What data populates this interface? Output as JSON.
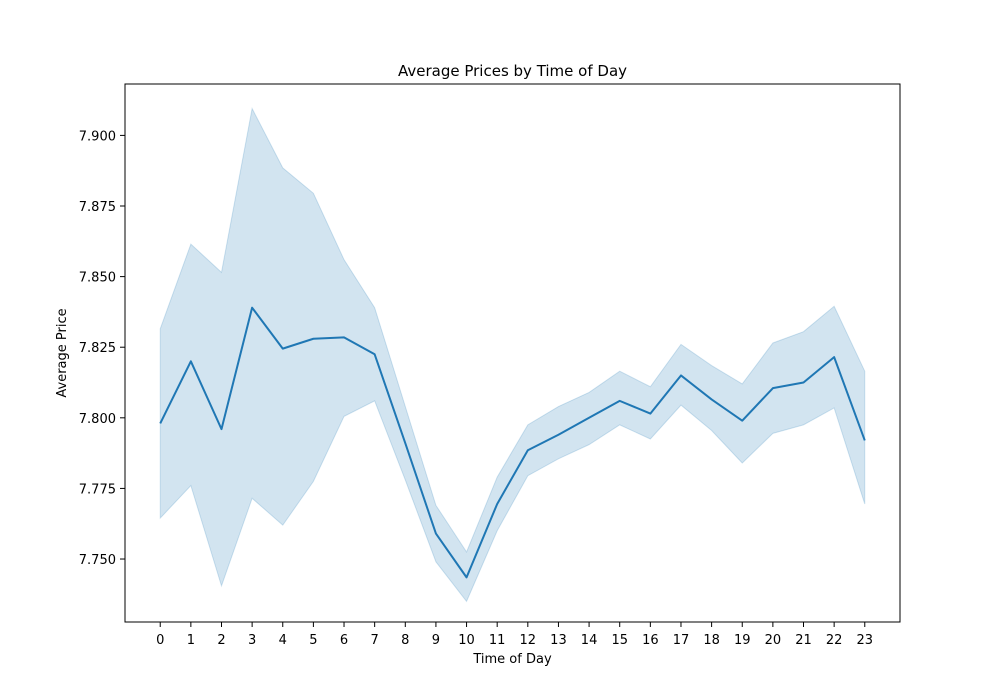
{
  "chart_data": {
    "type": "line",
    "title": "Average Prices by Time of Day",
    "xlabel": "Time of Day",
    "ylabel": "Average Price",
    "x": [
      0,
      1,
      2,
      3,
      4,
      5,
      6,
      7,
      8,
      9,
      10,
      11,
      12,
      13,
      14,
      15,
      16,
      17,
      18,
      19,
      20,
      21,
      22,
      23
    ],
    "series": [
      {
        "values": [
          7.798,
          7.82,
          7.796,
          7.839,
          7.8245,
          7.828,
          7.8285,
          7.8225,
          7.791,
          7.759,
          7.7435,
          7.7695,
          7.7885,
          7.794,
          7.8,
          7.806,
          7.8015,
          7.815,
          7.8065,
          7.799,
          7.8105,
          7.8125,
          7.8215,
          7.792
        ],
        "ci_lower": [
          7.7645,
          7.776,
          7.7405,
          7.7715,
          7.762,
          7.7775,
          7.8005,
          7.806,
          7.778,
          7.749,
          7.735,
          7.76,
          7.7795,
          7.7855,
          7.7905,
          7.7975,
          7.7925,
          7.8045,
          7.7955,
          7.784,
          7.7945,
          7.7975,
          7.8035,
          7.7695
        ],
        "ci_upper": [
          7.8315,
          7.8615,
          7.8515,
          7.9095,
          7.8885,
          7.8795,
          7.856,
          7.839,
          7.804,
          7.769,
          7.7525,
          7.779,
          7.7975,
          7.804,
          7.809,
          7.8165,
          7.811,
          7.826,
          7.8185,
          7.812,
          7.8265,
          7.8305,
          7.8395,
          7.8165
        ],
        "color": "#1f77b4",
        "band_color": "#1f77b4"
      }
    ],
    "xticks": [
      "0",
      "1",
      "2",
      "3",
      "4",
      "5",
      "6",
      "7",
      "8",
      "9",
      "10",
      "11",
      "12",
      "13",
      "14",
      "15",
      "16",
      "17",
      "18",
      "19",
      "20",
      "21",
      "22",
      "23"
    ],
    "yticks": [
      "7.750",
      "7.775",
      "7.800",
      "7.825",
      "7.850",
      "7.875",
      "7.900"
    ],
    "ytick_values": [
      7.75,
      7.775,
      7.8,
      7.825,
      7.85,
      7.875,
      7.9
    ],
    "xlim": [
      -1.15,
      24.15
    ],
    "ylim": [
      7.7277,
      7.9182
    ],
    "grid": false,
    "legend": false
  }
}
